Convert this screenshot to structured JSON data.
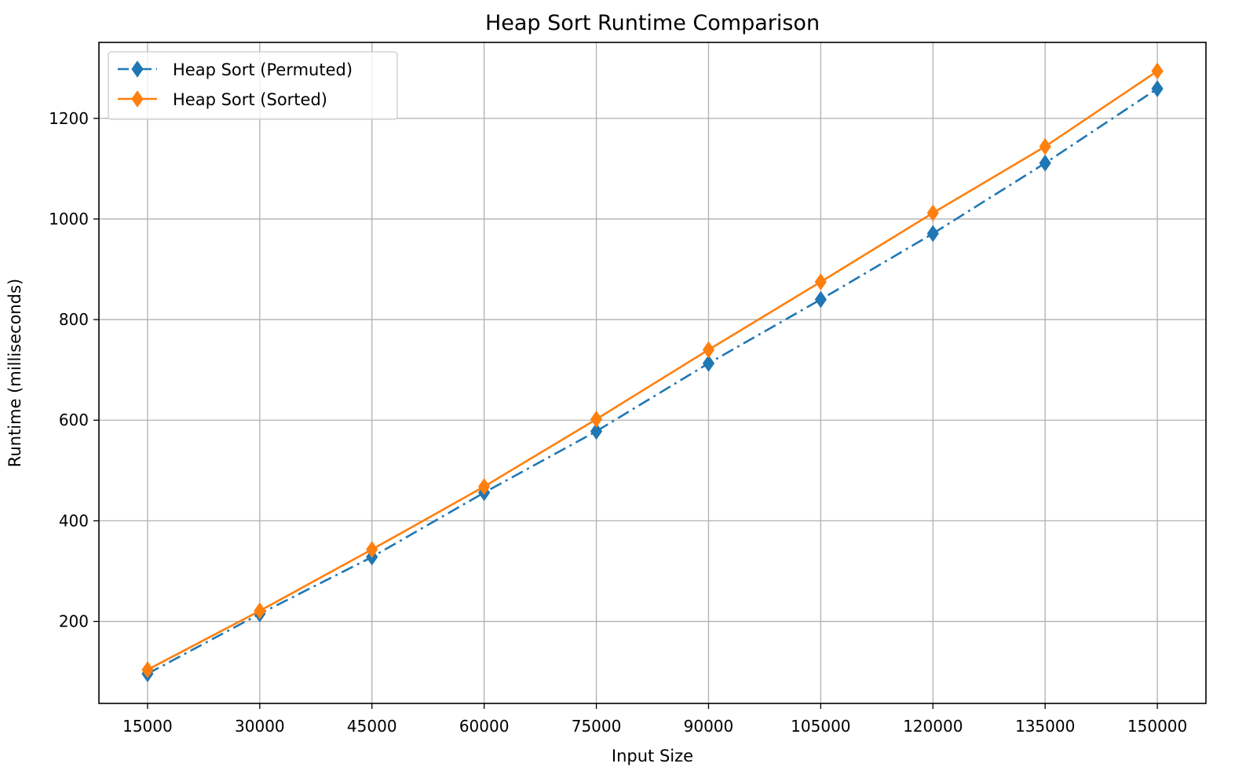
{
  "chart_data": {
    "type": "line",
    "title": "Heap Sort Runtime Comparison",
    "xlabel": "Input Size",
    "ylabel": "Runtime (milliseconds)",
    "x": [
      15000,
      30000,
      45000,
      60000,
      75000,
      90000,
      105000,
      120000,
      135000,
      150000
    ],
    "x_tick_labels": [
      "15000",
      "30000",
      "45000",
      "60000",
      "75000",
      "90000",
      "105000",
      "120000",
      "135000",
      "150000"
    ],
    "y_ticks": [
      200,
      400,
      600,
      800,
      1000,
      1200
    ],
    "y_tick_labels": [
      "200",
      "400",
      "600",
      "800",
      "1000",
      "1200"
    ],
    "xlim": [
      8500,
      156500
    ],
    "ylim": [
      37,
      1351
    ],
    "grid": true,
    "legend_position": "top-left",
    "series": [
      {
        "name": "Heap Sort (Permuted)",
        "color": "#1f77b4",
        "line_style": "dashdot",
        "marker": "thin-diamond",
        "values": [
          96,
          215,
          328,
          456,
          578,
          713,
          840,
          971,
          1111,
          1259
        ]
      },
      {
        "name": "Heap Sort (Sorted)",
        "color": "#ff7f0e",
        "line_style": "solid",
        "marker": "thin-diamond",
        "values": [
          104,
          221,
          343,
          468,
          602,
          740,
          875,
          1012,
          1144,
          1294
        ]
      }
    ]
  }
}
